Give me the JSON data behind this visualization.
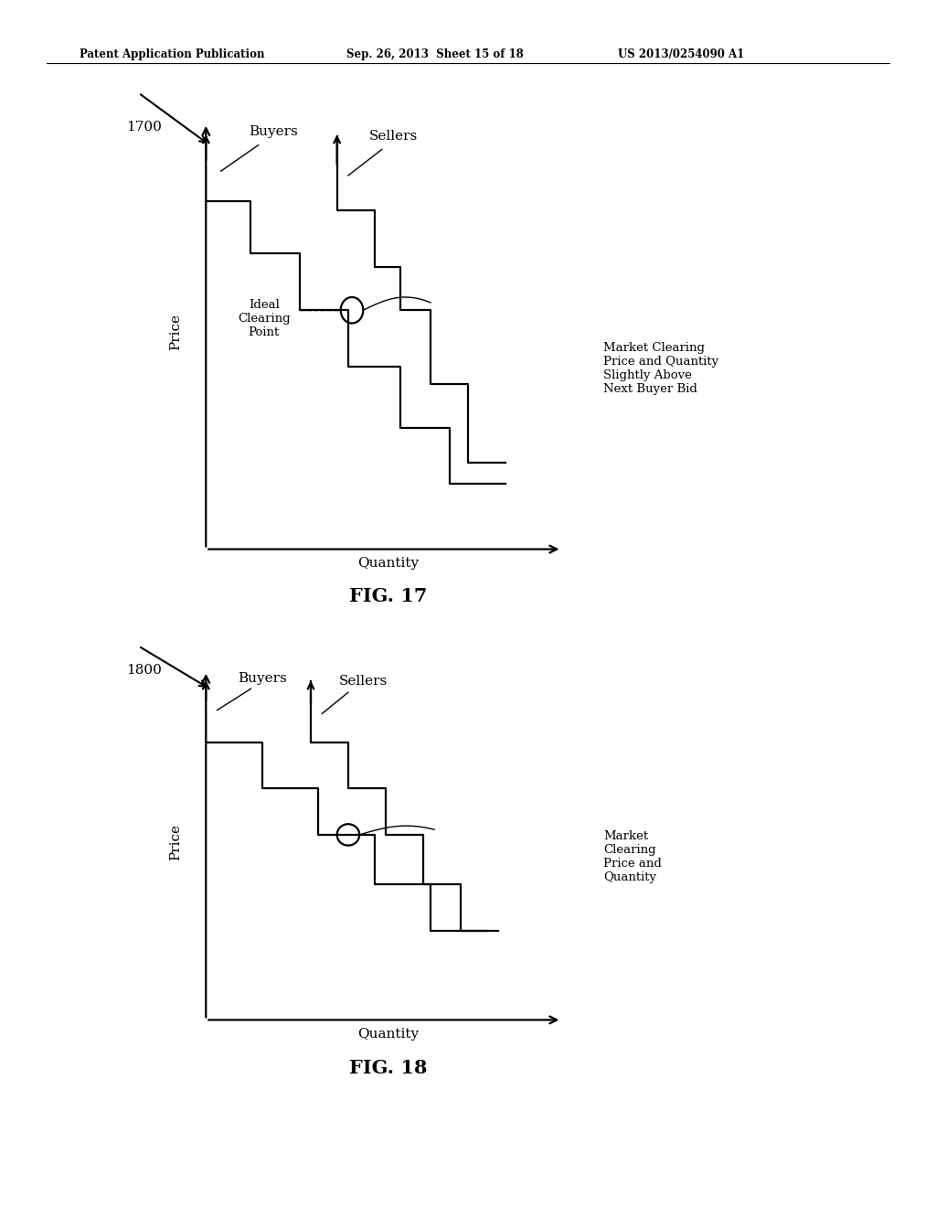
{
  "header_left": "Patent Application Publication",
  "header_mid": "Sep. 26, 2013  Sheet 15 of 18",
  "header_right": "US 2013/0254090 A1",
  "fig17_label": "1700",
  "fig17_caption": "FIG. 17",
  "fig18_label": "1800",
  "fig18_caption": "FIG. 18",
  "xlabel": "Quantity",
  "ylabel": "Price",
  "buyers_label": "Buyers",
  "sellers_label": "Sellers",
  "fig17_clearing_label": "Ideal\nClearing\nPoint",
  "fig17_annotation": "Market Clearing\nPrice and Quantity\nSlightly Above\nNext Buyer Bid",
  "fig18_annotation": "Market\nClearing\nPrice and\nQuantity",
  "background": "#ffffff",
  "line_color": "#000000"
}
